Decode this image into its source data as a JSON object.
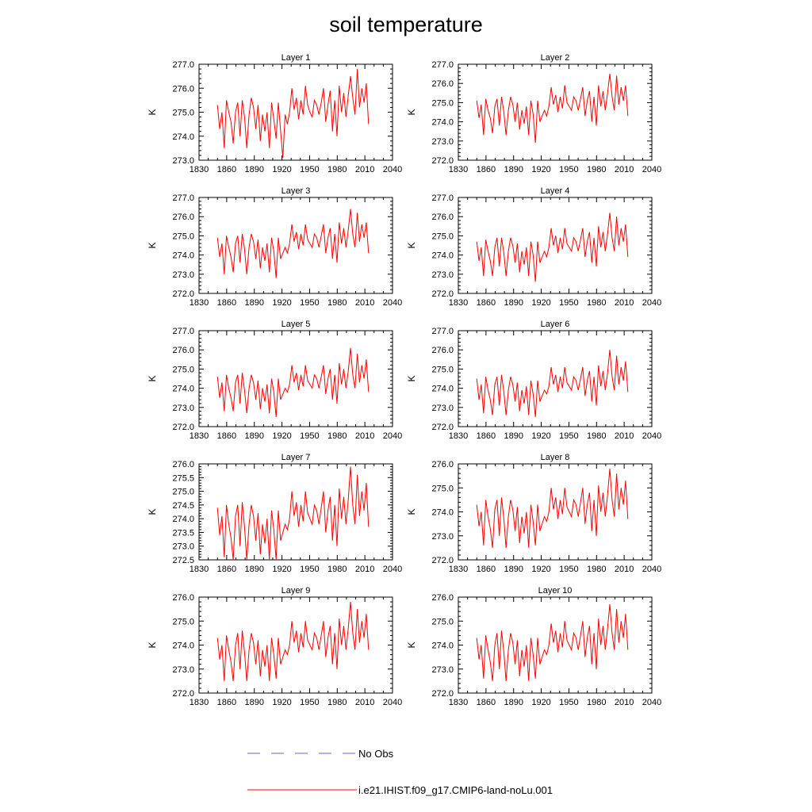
{
  "figure": {
    "title": "soil temperature",
    "legend": [
      {
        "label": "No Obs",
        "color": "#6666cc",
        "style": "dashed"
      },
      {
        "label": "i.e21.IHIST.f09_g17.CMIP6-land-noLu.001",
        "color": "#ff0000",
        "style": "solid"
      }
    ]
  },
  "chart_data": [
    {
      "type": "line",
      "title": "Layer 1",
      "ylabel": "K",
      "xlim": [
        1830,
        2040
      ],
      "ylim": [
        273.0,
        277.0
      ],
      "xticks": [
        "1830",
        "1860",
        "1890",
        "1920",
        "1950",
        "1980",
        "2010",
        "2040"
      ],
      "yticks": [
        "273.0",
        "274.0",
        "275.0",
        "276.0",
        "277.0"
      ],
      "series": [
        {
          "color": "#ff0000",
          "x_start": 1850,
          "x_end": 2014,
          "y": [
            275.3,
            274.3,
            275.0,
            273.5,
            275.5,
            275.0,
            274.6,
            273.7,
            275.0,
            275.4,
            274.0,
            275.5,
            274.8,
            273.5,
            274.9,
            275.6,
            275.2,
            274.3,
            275.3,
            273.8,
            274.9,
            274.2,
            275.0,
            273.5,
            275.4,
            274.7,
            273.9,
            275.4,
            274.2,
            273.1,
            274.9,
            274.5,
            275.0,
            276.0,
            275.1,
            275.6,
            274.7,
            275.5,
            274.9,
            276.1,
            275.3,
            275.0,
            274.8,
            275.5,
            275.3,
            274.9,
            275.4,
            276.0,
            274.6,
            275.3,
            275.9,
            274.2,
            275.5,
            274.0,
            276.1,
            275.0,
            275.8,
            274.8,
            275.7,
            276.5,
            275.6,
            274.9,
            276.8,
            275.2,
            276.0,
            275.4,
            276.2,
            274.5
          ]
        }
      ]
    },
    {
      "type": "line",
      "title": "Layer 2",
      "ylabel": "K",
      "xlim": [
        1830,
        2040
      ],
      "ylim": [
        272.0,
        277.0
      ],
      "xticks": [
        "1830",
        "1860",
        "1890",
        "1920",
        "1950",
        "1980",
        "2010",
        "2040"
      ],
      "yticks": [
        "272.0",
        "273.0",
        "274.0",
        "275.0",
        "276.0",
        "277.0"
      ],
      "series": [
        {
          "color": "#ff0000",
          "x_start": 1850,
          "x_end": 2014,
          "y": [
            275.1,
            274.2,
            274.9,
            273.3,
            275.2,
            274.6,
            274.2,
            273.4,
            274.8,
            275.2,
            273.8,
            275.3,
            274.5,
            273.3,
            274.6,
            275.3,
            274.9,
            274.0,
            275.0,
            273.6,
            274.6,
            273.9,
            274.8,
            273.3,
            275.1,
            274.4,
            272.9,
            275.1,
            274.0,
            274.3,
            274.6,
            274.3,
            274.8,
            275.8,
            274.9,
            275.4,
            274.5,
            275.3,
            274.7,
            275.9,
            275.0,
            274.8,
            274.6,
            275.3,
            275.1,
            274.6,
            275.2,
            275.8,
            274.3,
            275.1,
            275.6,
            274.0,
            275.3,
            273.8,
            275.9,
            274.8,
            275.6,
            274.6,
            275.5,
            276.5,
            275.3,
            274.6,
            276.4,
            274.9,
            275.8,
            275.1,
            275.9,
            274.3
          ]
        }
      ]
    },
    {
      "type": "line",
      "title": "Layer 3",
      "ylabel": "K",
      "xlim": [
        1830,
        2040
      ],
      "ylim": [
        272.0,
        277.0
      ],
      "xticks": [
        "1830",
        "1860",
        "1890",
        "1920",
        "1950",
        "1980",
        "2010",
        "2040"
      ],
      "yticks": [
        "272.0",
        "273.0",
        "274.0",
        "275.0",
        "276.0",
        "277.0"
      ],
      "series": [
        {
          "color": "#ff0000",
          "x_start": 1850,
          "x_end": 2014,
          "y": [
            274.9,
            273.9,
            274.6,
            273.0,
            275.0,
            274.4,
            273.9,
            273.1,
            274.6,
            275.0,
            273.6,
            275.1,
            274.3,
            273.0,
            274.4,
            275.1,
            274.7,
            273.8,
            274.8,
            273.3,
            274.4,
            273.7,
            274.6,
            273.1,
            274.9,
            274.2,
            272.8,
            274.9,
            273.8,
            274.1,
            274.4,
            274.1,
            274.6,
            275.6,
            274.7,
            275.2,
            274.3,
            275.1,
            274.5,
            275.6,
            274.8,
            274.6,
            274.4,
            275.1,
            274.9,
            274.4,
            275.0,
            275.6,
            274.1,
            274.9,
            275.4,
            273.8,
            275.1,
            273.6,
            275.7,
            274.6,
            275.4,
            274.4,
            275.3,
            276.4,
            275.1,
            274.4,
            276.2,
            274.7,
            275.6,
            274.9,
            275.7,
            274.1
          ]
        }
      ]
    },
    {
      "type": "line",
      "title": "Layer 4",
      "ylabel": "K",
      "xlim": [
        1830,
        2040
      ],
      "ylim": [
        272.0,
        277.0
      ],
      "xticks": [
        "1830",
        "1860",
        "1890",
        "1920",
        "1950",
        "1980",
        "2010",
        "2040"
      ],
      "yticks": [
        "272.0",
        "273.0",
        "274.0",
        "275.0",
        "276.0",
        "277.0"
      ],
      "series": [
        {
          "color": "#ff0000",
          "x_start": 1850,
          "x_end": 2014,
          "y": [
            274.7,
            273.7,
            274.4,
            272.9,
            274.8,
            274.2,
            273.7,
            272.9,
            274.4,
            274.9,
            273.4,
            274.9,
            274.1,
            272.9,
            274.2,
            274.9,
            274.5,
            273.6,
            274.6,
            273.1,
            274.2,
            273.5,
            274.4,
            272.9,
            274.7,
            274.0,
            272.6,
            274.7,
            273.6,
            273.9,
            274.2,
            273.9,
            274.4,
            275.4,
            274.5,
            275.0,
            274.1,
            274.9,
            274.3,
            275.4,
            274.6,
            274.4,
            274.2,
            274.9,
            274.7,
            274.2,
            274.8,
            275.4,
            273.9,
            274.7,
            275.2,
            273.6,
            274.9,
            273.4,
            275.5,
            274.4,
            275.2,
            274.2,
            275.1,
            276.2,
            274.9,
            274.2,
            276.0,
            274.5,
            275.4,
            274.7,
            275.6,
            273.9
          ]
        }
      ]
    },
    {
      "type": "line",
      "title": "Layer 5",
      "ylabel": "K",
      "xlim": [
        1830,
        2040
      ],
      "ylim": [
        272.0,
        277.0
      ],
      "xticks": [
        "1830",
        "1860",
        "1890",
        "1920",
        "1950",
        "1980",
        "2010",
        "2040"
      ],
      "yticks": [
        "272.0",
        "273.0",
        "274.0",
        "275.0",
        "276.0",
        "277.0"
      ],
      "series": [
        {
          "color": "#ff0000",
          "x_start": 1850,
          "x_end": 2014,
          "y": [
            274.6,
            273.5,
            274.3,
            272.8,
            274.7,
            274.0,
            273.5,
            272.8,
            274.3,
            274.7,
            273.2,
            274.8,
            273.9,
            272.7,
            274.0,
            274.7,
            274.3,
            273.4,
            274.4,
            272.9,
            274.0,
            273.3,
            274.2,
            272.7,
            274.5,
            273.8,
            272.5,
            274.5,
            273.4,
            273.7,
            274.0,
            273.8,
            274.2,
            275.2,
            274.3,
            274.8,
            273.9,
            274.7,
            274.1,
            275.2,
            274.4,
            274.2,
            274.0,
            274.7,
            274.5,
            274.0,
            274.6,
            275.2,
            273.7,
            274.5,
            275.0,
            273.4,
            274.7,
            273.2,
            275.3,
            274.2,
            275.0,
            274.0,
            274.9,
            276.1,
            274.7,
            274.0,
            275.8,
            274.3,
            275.2,
            274.5,
            275.5,
            273.8
          ]
        }
      ]
    },
    {
      "type": "line",
      "title": "Layer 6",
      "ylabel": "K",
      "xlim": [
        1830,
        2040
      ],
      "ylim": [
        272.0,
        277.0
      ],
      "xticks": [
        "1830",
        "1860",
        "1890",
        "1920",
        "1950",
        "1980",
        "2010",
        "2040"
      ],
      "yticks": [
        "272.0",
        "273.0",
        "274.0",
        "275.0",
        "276.0",
        "277.0"
      ],
      "series": [
        {
          "color": "#ff0000",
          "x_start": 1850,
          "x_end": 2014,
          "y": [
            274.5,
            273.4,
            274.2,
            272.7,
            274.6,
            273.9,
            273.4,
            272.6,
            274.2,
            274.6,
            273.1,
            274.7,
            273.8,
            272.6,
            273.9,
            274.6,
            274.2,
            273.3,
            274.3,
            272.8,
            273.9,
            273.2,
            274.1,
            272.6,
            274.4,
            273.7,
            272.5,
            274.4,
            273.3,
            273.6,
            273.9,
            273.7,
            274.1,
            275.1,
            274.2,
            274.7,
            273.8,
            274.6,
            274.0,
            275.1,
            274.3,
            274.1,
            273.9,
            274.6,
            274.4,
            273.9,
            274.5,
            275.1,
            273.6,
            274.4,
            274.9,
            273.3,
            274.6,
            273.1,
            275.2,
            274.1,
            274.9,
            273.9,
            274.8,
            276.0,
            274.6,
            273.9,
            275.7,
            274.2,
            275.1,
            274.4,
            275.4,
            273.8
          ]
        }
      ]
    },
    {
      "type": "line",
      "title": "Layer 7",
      "ylabel": "K",
      "xlim": [
        1830,
        2040
      ],
      "ylim": [
        272.5,
        276.0
      ],
      "xticks": [
        "1830",
        "1860",
        "1890",
        "1920",
        "1950",
        "1980",
        "2010",
        "2040"
      ],
      "yticks": [
        "272.5",
        "273.0",
        "273.5",
        "274.0",
        "274.5",
        "275.0",
        "275.5",
        "276.0"
      ],
      "series": [
        {
          "color": "#ff0000",
          "x_start": 1850,
          "x_end": 2014,
          "y": [
            274.4,
            273.4,
            274.1,
            272.6,
            274.5,
            273.8,
            273.3,
            272.5,
            274.1,
            274.5,
            273.0,
            274.6,
            273.7,
            272.5,
            273.8,
            274.5,
            274.1,
            273.2,
            274.2,
            272.7,
            273.8,
            273.1,
            274.0,
            272.5,
            274.3,
            273.6,
            272.5,
            274.3,
            273.2,
            273.5,
            273.8,
            273.6,
            274.0,
            275.0,
            274.1,
            274.6,
            273.7,
            274.5,
            273.9,
            275.0,
            274.2,
            274.0,
            273.8,
            274.5,
            274.3,
            273.8,
            274.4,
            275.0,
            273.5,
            274.3,
            274.8,
            273.2,
            274.5,
            273.0,
            275.1,
            274.0,
            274.8,
            273.8,
            274.7,
            275.9,
            274.5,
            273.8,
            275.6,
            274.1,
            275.0,
            274.3,
            275.3,
            273.7
          ]
        }
      ]
    },
    {
      "type": "line",
      "title": "Layer 8",
      "ylabel": "K",
      "xlim": [
        1830,
        2040
      ],
      "ylim": [
        272.0,
        276.0
      ],
      "xticks": [
        "1830",
        "1860",
        "1890",
        "1920",
        "1950",
        "1980",
        "2010",
        "2040"
      ],
      "yticks": [
        "272.0",
        "273.0",
        "274.0",
        "275.0",
        "276.0"
      ],
      "series": [
        {
          "color": "#ff0000",
          "x_start": 1850,
          "x_end": 2014,
          "y": [
            274.3,
            273.4,
            274.0,
            272.6,
            274.5,
            273.8,
            273.3,
            272.5,
            274.1,
            274.5,
            273.0,
            274.6,
            273.7,
            272.5,
            273.8,
            274.5,
            274.1,
            273.2,
            274.2,
            272.7,
            273.8,
            273.1,
            274.0,
            272.5,
            274.3,
            273.6,
            272.6,
            274.3,
            273.2,
            273.5,
            273.8,
            273.6,
            274.0,
            275.0,
            274.1,
            274.6,
            273.7,
            274.5,
            273.9,
            275.0,
            274.2,
            274.0,
            273.8,
            274.5,
            274.3,
            273.8,
            274.4,
            275.0,
            273.5,
            274.3,
            274.8,
            273.2,
            274.5,
            273.0,
            275.1,
            274.0,
            274.8,
            273.8,
            274.7,
            275.8,
            274.5,
            273.8,
            275.6,
            274.1,
            275.0,
            274.3,
            275.3,
            273.7
          ]
        }
      ]
    },
    {
      "type": "line",
      "title": "Layer 9",
      "ylabel": "K",
      "xlim": [
        1830,
        2040
      ],
      "ylim": [
        272.0,
        276.0
      ],
      "xticks": [
        "1830",
        "1860",
        "1890",
        "1920",
        "1950",
        "1980",
        "2010",
        "2040"
      ],
      "yticks": [
        "272.0",
        "273.0",
        "274.0",
        "275.0",
        "276.0"
      ],
      "series": [
        {
          "color": "#ff0000",
          "x_start": 1850,
          "x_end": 2014,
          "y": [
            274.3,
            273.4,
            274.0,
            272.5,
            274.4,
            273.8,
            273.3,
            272.5,
            274.0,
            274.5,
            273.0,
            274.6,
            273.7,
            272.5,
            273.8,
            274.5,
            274.1,
            273.2,
            274.2,
            272.7,
            273.8,
            273.1,
            274.0,
            272.5,
            274.3,
            273.6,
            272.6,
            274.3,
            273.2,
            273.5,
            273.8,
            273.6,
            274.0,
            275.0,
            274.1,
            274.6,
            273.7,
            274.5,
            273.9,
            275.0,
            274.2,
            274.0,
            273.8,
            274.5,
            274.3,
            273.8,
            274.4,
            275.0,
            273.5,
            274.3,
            274.8,
            273.2,
            274.5,
            273.0,
            275.1,
            274.0,
            274.8,
            273.8,
            274.7,
            275.8,
            274.5,
            273.8,
            275.5,
            274.1,
            275.0,
            274.3,
            275.3,
            273.8
          ]
        }
      ]
    },
    {
      "type": "line",
      "title": "Layer 10",
      "ylabel": "K",
      "xlim": [
        1830,
        2040
      ],
      "ylim": [
        272.0,
        276.0
      ],
      "xticks": [
        "1830",
        "1860",
        "1890",
        "1920",
        "1950",
        "1980",
        "2010",
        "2040"
      ],
      "yticks": [
        "272.0",
        "273.0",
        "274.0",
        "275.0",
        "276.0"
      ],
      "series": [
        {
          "color": "#ff0000",
          "x_start": 1850,
          "x_end": 2014,
          "y": [
            274.3,
            273.4,
            274.0,
            272.6,
            274.4,
            273.8,
            273.3,
            272.5,
            274.0,
            274.5,
            273.0,
            274.6,
            273.7,
            272.5,
            273.8,
            274.5,
            274.1,
            273.2,
            274.2,
            272.7,
            273.8,
            273.1,
            274.0,
            272.5,
            274.3,
            273.6,
            272.6,
            274.3,
            273.2,
            273.5,
            273.8,
            273.6,
            274.0,
            274.9,
            274.1,
            274.6,
            273.7,
            274.5,
            273.9,
            275.0,
            274.2,
            274.0,
            273.8,
            274.5,
            274.3,
            273.8,
            274.4,
            275.0,
            273.5,
            274.3,
            274.8,
            273.2,
            274.5,
            273.0,
            275.1,
            274.0,
            274.8,
            273.8,
            274.7,
            275.7,
            274.5,
            273.8,
            275.5,
            274.1,
            275.0,
            274.3,
            275.3,
            273.8
          ]
        }
      ]
    }
  ]
}
